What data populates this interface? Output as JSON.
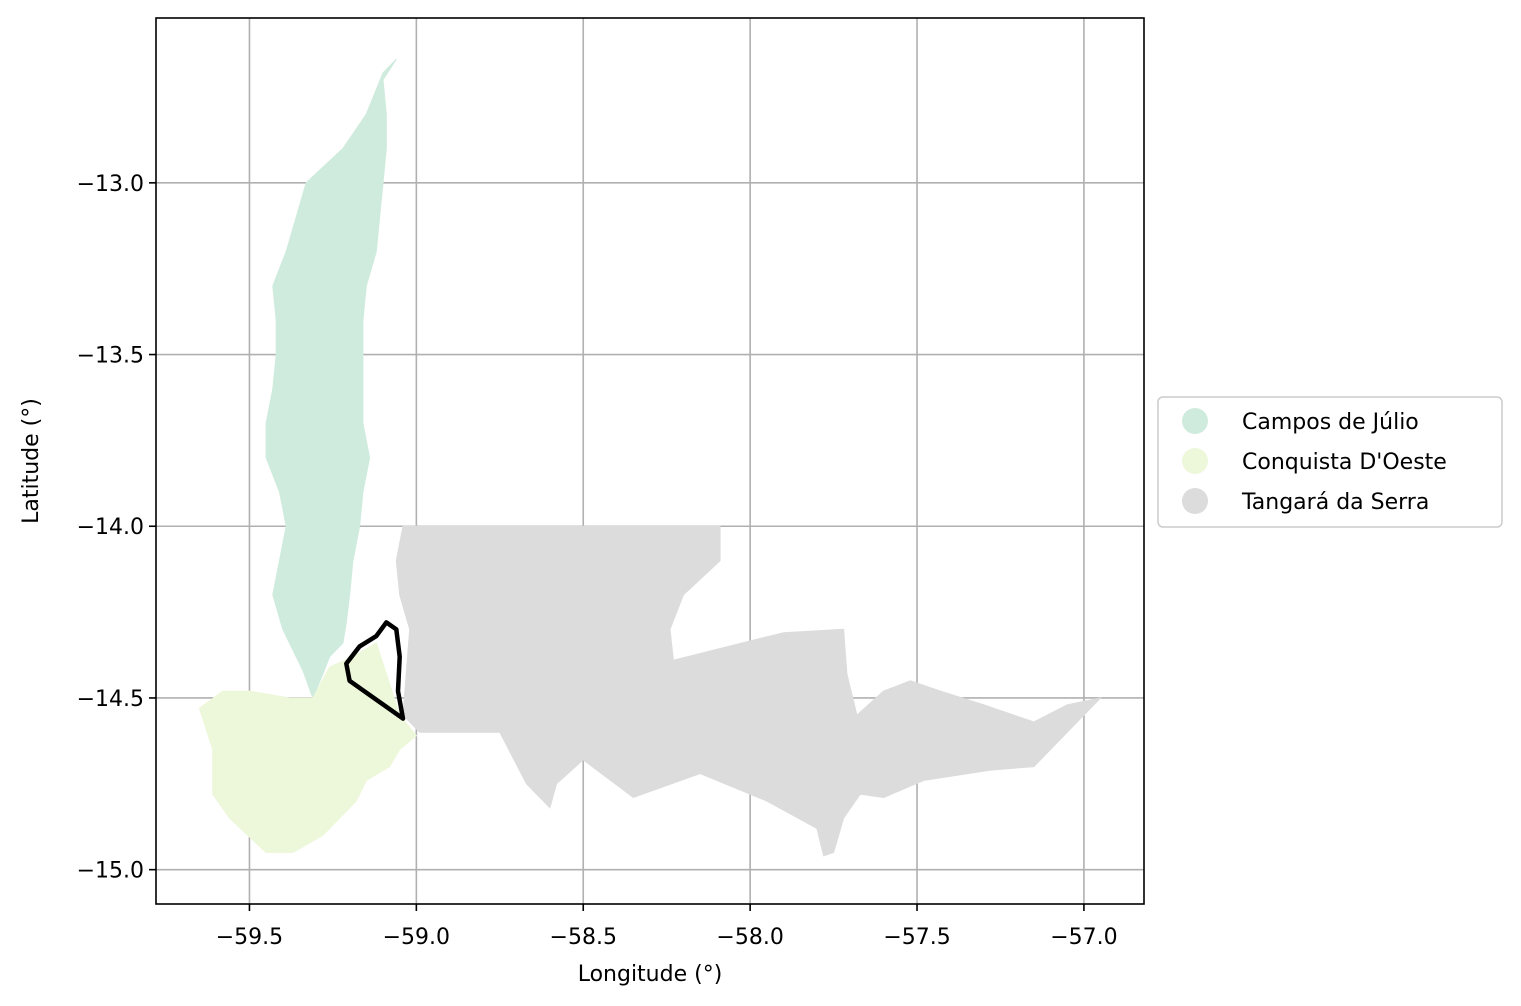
{
  "map": {
    "xlabel": "Longitude (°)",
    "ylabel": "Latitude (°)",
    "xlim": [
      -59.78,
      -56.82
    ],
    "ylim": [
      -15.1,
      -12.52
    ],
    "x_ticks": [
      -59.5,
      -59.0,
      -58.5,
      -58.0,
      -57.5,
      -57.0
    ],
    "x_tick_labels": [
      "−59.5",
      "−59.0",
      "−58.5",
      "−58.0",
      "−57.5",
      "−57.0"
    ],
    "y_ticks": [
      -13.0,
      -13.5,
      -14.0,
      -14.5,
      -15.0
    ],
    "y_tick_labels": [
      "−13.0",
      "−13.5",
      "−14.0",
      "−14.5",
      "−15.0"
    ],
    "grid": true,
    "legend_placement": "right, outside axes, vertically centered"
  },
  "legend": {
    "items": [
      {
        "label": "Campos de Júlio",
        "color": "#cfebdd"
      },
      {
        "label": "Conquista D'Oeste",
        "color": "#edf7da"
      },
      {
        "label": "Tangará da Serra",
        "color": "#dcdcdc"
      }
    ]
  },
  "regions": [
    {
      "name": "Campos de Júlio",
      "color": "#cfebdd",
      "lonlat": [
        [
          -59.06,
          -12.64
        ],
        [
          -59.1,
          -12.7
        ],
        [
          -59.09,
          -12.8
        ],
        [
          -59.09,
          -12.9
        ],
        [
          -59.1,
          -13.0
        ],
        [
          -59.11,
          -13.1
        ],
        [
          -59.12,
          -13.2
        ],
        [
          -59.15,
          -13.3
        ],
        [
          -59.16,
          -13.4
        ],
        [
          -59.16,
          -13.5
        ],
        [
          -59.16,
          -13.6
        ],
        [
          -59.16,
          -13.7
        ],
        [
          -59.14,
          -13.8
        ],
        [
          -59.16,
          -13.9
        ],
        [
          -59.17,
          -14.0
        ],
        [
          -59.19,
          -14.1
        ],
        [
          -59.2,
          -14.2
        ],
        [
          -59.21,
          -14.28
        ],
        [
          -59.22,
          -14.34
        ],
        [
          -59.26,
          -14.38
        ],
        [
          -59.28,
          -14.43
        ],
        [
          -59.31,
          -14.5
        ],
        [
          -59.34,
          -14.42
        ],
        [
          -59.4,
          -14.3
        ],
        [
          -59.43,
          -14.2
        ],
        [
          -59.41,
          -14.1
        ],
        [
          -59.39,
          -14.0
        ],
        [
          -59.41,
          -13.9
        ],
        [
          -59.45,
          -13.8
        ],
        [
          -59.45,
          -13.7
        ],
        [
          -59.43,
          -13.6
        ],
        [
          -59.42,
          -13.5
        ],
        [
          -59.42,
          -13.4
        ],
        [
          -59.43,
          -13.3
        ],
        [
          -59.39,
          -13.2
        ],
        [
          -59.36,
          -13.1
        ],
        [
          -59.33,
          -13.0
        ],
        [
          -59.22,
          -12.9
        ],
        [
          -59.15,
          -12.8
        ],
        [
          -59.1,
          -12.68
        ]
      ]
    },
    {
      "name": "Conquista D'Oeste",
      "color": "#edf7da",
      "lonlat": [
        [
          -59.31,
          -14.5
        ],
        [
          -59.26,
          -14.41
        ],
        [
          -59.19,
          -14.38
        ],
        [
          -59.12,
          -14.34
        ],
        [
          -59.05,
          -14.55
        ],
        [
          -59.0,
          -14.61
        ],
        [
          -59.05,
          -14.65
        ],
        [
          -59.08,
          -14.7
        ],
        [
          -59.15,
          -14.74
        ],
        [
          -59.18,
          -14.8
        ],
        [
          -59.28,
          -14.9
        ],
        [
          -59.37,
          -14.95
        ],
        [
          -59.45,
          -14.95
        ],
        [
          -59.56,
          -14.85
        ],
        [
          -59.61,
          -14.78
        ],
        [
          -59.61,
          -14.65
        ],
        [
          -59.65,
          -14.53
        ],
        [
          -59.58,
          -14.48
        ],
        [
          -59.5,
          -14.48
        ],
        [
          -59.38,
          -14.5
        ]
      ]
    },
    {
      "name": "Tangará da Serra",
      "color": "#dcdcdc",
      "lonlat": [
        [
          -59.04,
          -14.0
        ],
        [
          -58.09,
          -14.0
        ],
        [
          -58.09,
          -14.1
        ],
        [
          -58.2,
          -14.2
        ],
        [
          -58.24,
          -14.3
        ],
        [
          -58.23,
          -14.39
        ],
        [
          -57.9,
          -14.31
        ],
        [
          -57.72,
          -14.3
        ],
        [
          -57.71,
          -14.43
        ],
        [
          -57.68,
          -14.55
        ],
        [
          -57.6,
          -14.48
        ],
        [
          -57.52,
          -14.45
        ],
        [
          -57.43,
          -14.48
        ],
        [
          -57.3,
          -14.52
        ],
        [
          -57.15,
          -14.57
        ],
        [
          -57.05,
          -14.52
        ],
        [
          -56.95,
          -14.5
        ],
        [
          -57.05,
          -14.6
        ],
        [
          -57.15,
          -14.7
        ],
        [
          -57.28,
          -14.71
        ],
        [
          -57.48,
          -14.74
        ],
        [
          -57.6,
          -14.79
        ],
        [
          -57.67,
          -14.78
        ],
        [
          -57.72,
          -14.85
        ],
        [
          -57.75,
          -14.95
        ],
        [
          -57.78,
          -14.96
        ],
        [
          -57.8,
          -14.88
        ],
        [
          -57.95,
          -14.8
        ],
        [
          -58.15,
          -14.72
        ],
        [
          -58.35,
          -14.79
        ],
        [
          -58.5,
          -14.68
        ],
        [
          -58.58,
          -14.75
        ],
        [
          -58.6,
          -14.82
        ],
        [
          -58.67,
          -14.75
        ],
        [
          -58.75,
          -14.6
        ],
        [
          -58.99,
          -14.6
        ],
        [
          -59.04,
          -14.55
        ],
        [
          -59.02,
          -14.3
        ],
        [
          -59.05,
          -14.2
        ],
        [
          -59.06,
          -14.1
        ]
      ]
    }
  ],
  "highlight": {
    "name": "outlined area",
    "lonlat": [
      [
        -59.09,
        -14.28
      ],
      [
        -59.06,
        -14.3
      ],
      [
        -59.05,
        -14.38
      ],
      [
        -59.055,
        -14.48
      ],
      [
        -59.04,
        -14.56
      ],
      [
        -59.2,
        -14.45
      ],
      [
        -59.21,
        -14.4
      ],
      [
        -59.17,
        -14.35
      ],
      [
        -59.12,
        -14.32
      ]
    ]
  }
}
